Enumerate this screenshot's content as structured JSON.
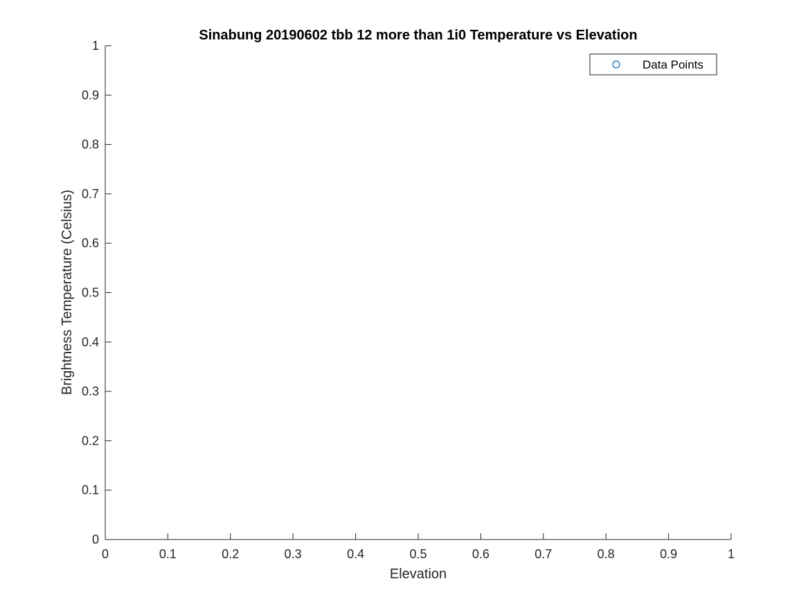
{
  "chart_data": {
    "type": "scatter",
    "title": "Sinabung 20190602 tbb 12 more than 1i0 Temperature vs Elevation",
    "xlabel": "Elevation",
    "ylabel": "Brightness Temperature (Celsius)",
    "xlim": [
      0,
      1
    ],
    "ylim": [
      0,
      1
    ],
    "x_ticks": [
      "0",
      "0.1",
      "0.2",
      "0.3",
      "0.4",
      "0.5",
      "0.6",
      "0.7",
      "0.8",
      "0.9",
      "1"
    ],
    "y_ticks": [
      "0",
      "0.1",
      "0.2",
      "0.3",
      "0.4",
      "0.5",
      "0.6",
      "0.7",
      "0.8",
      "0.9",
      "1"
    ],
    "grid": false,
    "legend_position": "top-right",
    "series": [
      {
        "name": "Data Points",
        "marker": "circle-open",
        "color": "#0072BD",
        "x": [],
        "y": []
      }
    ]
  },
  "colors": {
    "axis": "#262626",
    "marker": "#0072BD"
  }
}
